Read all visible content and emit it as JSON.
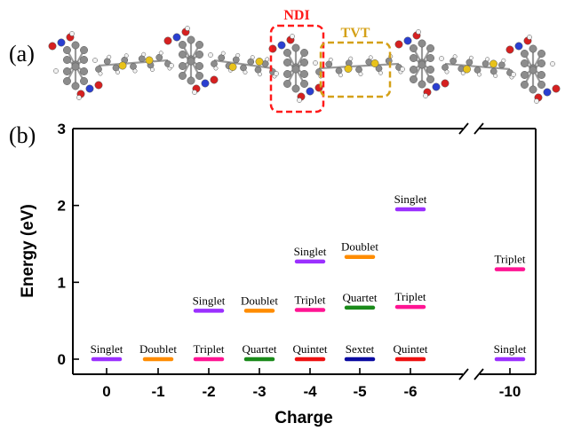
{
  "panel_labels": {
    "a": "(a)",
    "b": "(b)"
  },
  "structure": {
    "highlights": [
      {
        "label": "NDI",
        "color": "#ff1a1a"
      },
      {
        "label": "TVT",
        "color": "#d4a017"
      }
    ]
  },
  "chart_data": {
    "type": "scatter",
    "xlabel": "Charge",
    "ylabel": "Energy (eV)",
    "categories": [
      "0",
      "-1",
      "-2",
      "-3",
      "-4",
      "-5",
      "-6",
      "-10"
    ],
    "ylim": [
      0,
      3
    ],
    "yticks": [
      0,
      1,
      2,
      3
    ],
    "axis_break": "between -6 and -10",
    "grid": false,
    "levels": [
      {
        "charge": "0",
        "label": "Singlet",
        "energy": 0.0,
        "color": "#9b30ff"
      },
      {
        "charge": "-1",
        "label": "Doublet",
        "energy": 0.0,
        "color": "#ff8c00"
      },
      {
        "charge": "-2",
        "label": "Triplet",
        "energy": 0.0,
        "color": "#ff1493"
      },
      {
        "charge": "-2",
        "label": "Singlet",
        "energy": 0.63,
        "color": "#9b30ff"
      },
      {
        "charge": "-3",
        "label": "Quartet",
        "energy": 0.0,
        "color": "#1a8a1a"
      },
      {
        "charge": "-3",
        "label": "Doublet",
        "energy": 0.63,
        "color": "#ff8c00"
      },
      {
        "charge": "-4",
        "label": "Quintet",
        "energy": 0.0,
        "color": "#ee1111"
      },
      {
        "charge": "-4",
        "label": "Triplet",
        "energy": 0.64,
        "color": "#ff1493"
      },
      {
        "charge": "-4",
        "label": "Singlet",
        "energy": 1.27,
        "color": "#9b30ff"
      },
      {
        "charge": "-5",
        "label": "Sextet",
        "energy": 0.0,
        "color": "#0a0aa0"
      },
      {
        "charge": "-5",
        "label": "Quartet",
        "energy": 0.67,
        "color": "#1a8a1a"
      },
      {
        "charge": "-5",
        "label": "Doublet",
        "energy": 1.33,
        "color": "#ff8c00"
      },
      {
        "charge": "-6",
        "label": "Quintet",
        "energy": 0.0,
        "color": "#ee1111"
      },
      {
        "charge": "-6",
        "label": "Triplet",
        "energy": 0.68,
        "color": "#ff1493"
      },
      {
        "charge": "-6",
        "label": "Singlet",
        "energy": 1.95,
        "color": "#9b30ff"
      },
      {
        "charge": "-10",
        "label": "Singlet",
        "energy": 0.0,
        "color": "#9b30ff"
      },
      {
        "charge": "-10",
        "label": "Triplet",
        "energy": 1.17,
        "color": "#ff1493"
      }
    ]
  }
}
